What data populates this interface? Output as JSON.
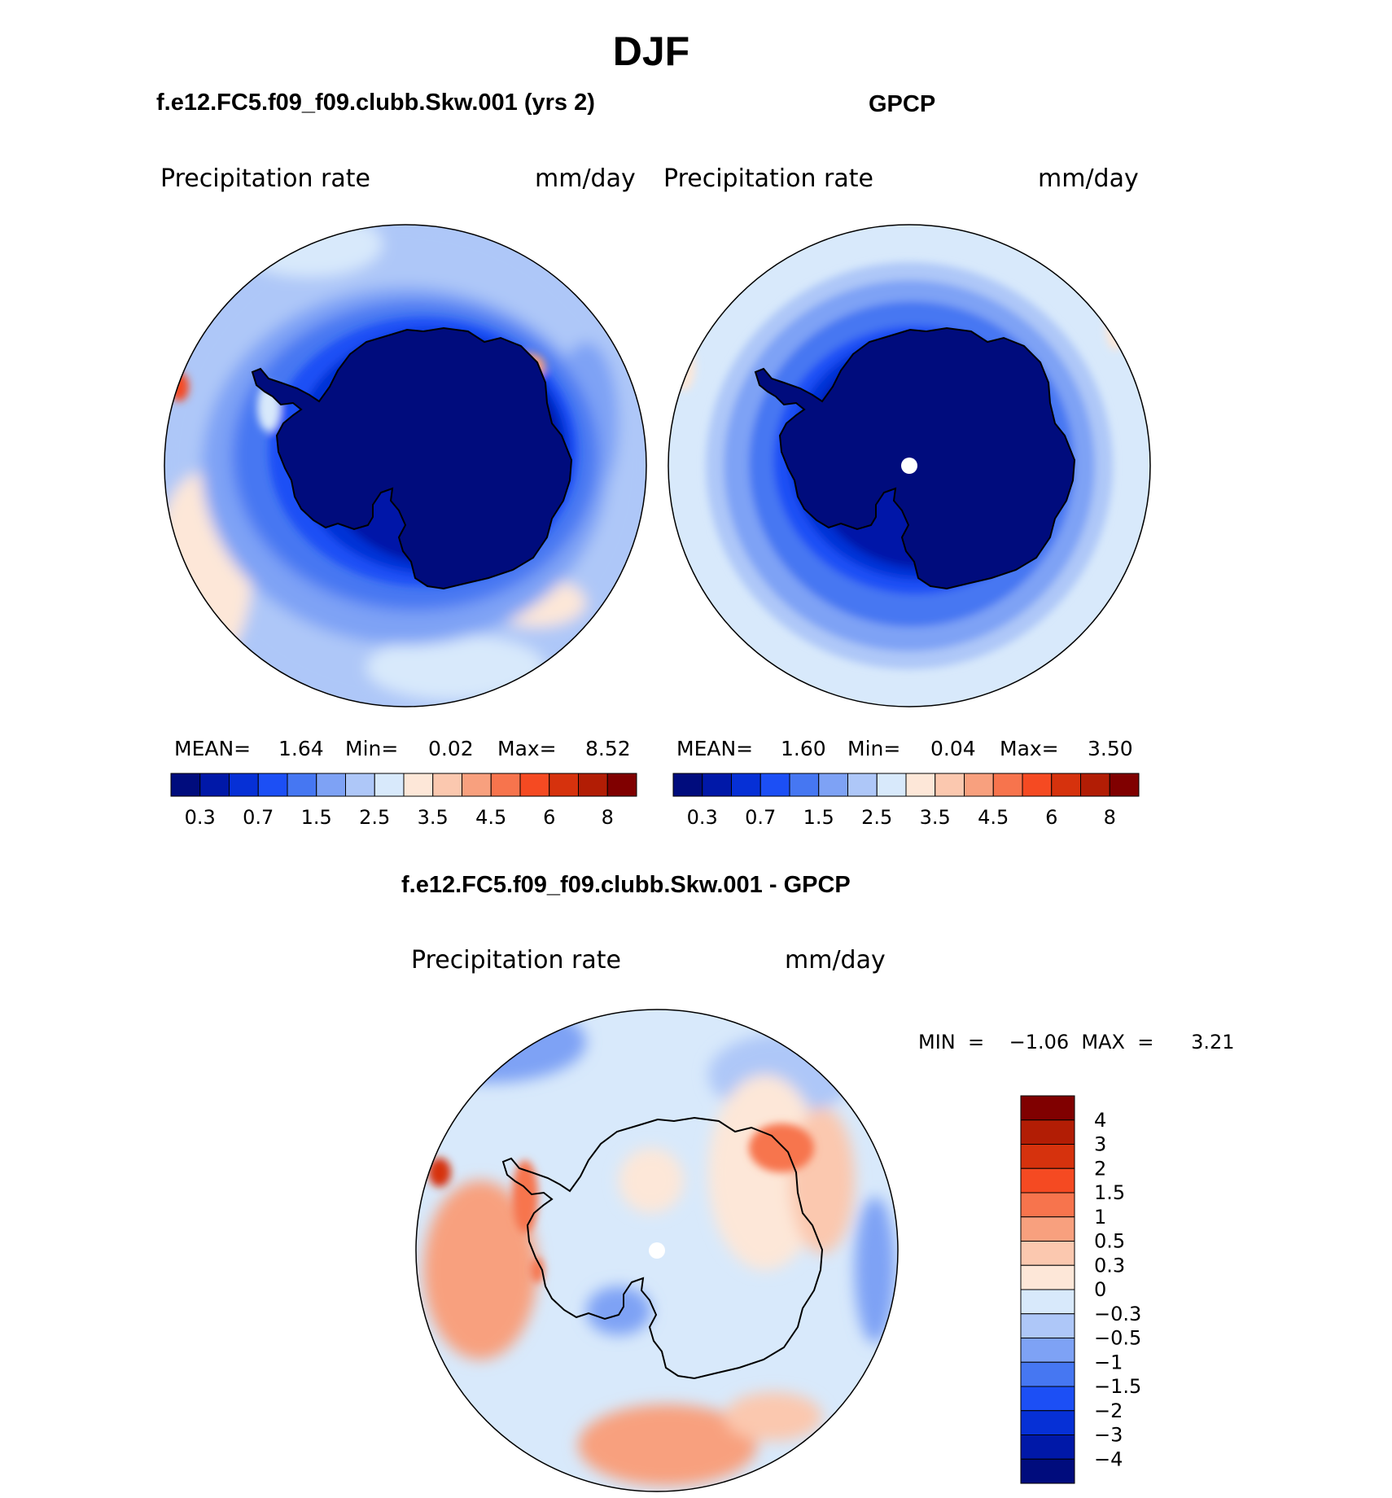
{
  "title": "DJF",
  "panels": [
    {
      "title": "f.e12.FC5.f09_f09.clubb.Skw.001 (yrs 2)",
      "left_label": "Precipitation  rate",
      "right_label": "mm/day",
      "stats": {
        "mean_label": "MEAN=",
        "mean": "1.64",
        "min_label": "Min=",
        "min": "0.02",
        "max_label": "Max=",
        "max": "8.52"
      }
    },
    {
      "title": "GPCP",
      "left_label": "Precipitation  rate",
      "right_label": "mm/day",
      "stats": {
        "mean_label": "MEAN=",
        "mean": "1.60",
        "min_label": "Min=",
        "min": "0.04",
        "max_label": "Max=",
        "max": "3.50"
      }
    }
  ],
  "diff": {
    "title": "f.e12.FC5.f09_f09.clubb.Skw.001 - GPCP",
    "left_label": "Precipitation  rate",
    "right_label": "mm/day",
    "minmax": "MIN  =    −1.06  MAX  =      3.21"
  },
  "colorbar_abs": {
    "colors": [
      "#000c7d",
      "#0018a8",
      "#0630d6",
      "#1c4ff5",
      "#4677f2",
      "#7ea2f5",
      "#aec7f8",
      "#d8e9fb",
      "#fde7d8",
      "#fbc8af",
      "#f8a07e",
      "#f7744d",
      "#f54a22",
      "#d6320d",
      "#b21d05",
      "#800000"
    ],
    "labels": [
      "0.3",
      "0.7",
      "1.5",
      "2.5",
      "3.5",
      "4.5",
      "6",
      "8"
    ]
  },
  "colorbar_diff": {
    "colors": [
      "#000c7d",
      "#0018a8",
      "#0630d6",
      "#1c4ff5",
      "#4677f2",
      "#7ea2f5",
      "#aec7f8",
      "#d8e9fb",
      "#fde7d8",
      "#fbc8af",
      "#f8a07e",
      "#f7744d",
      "#f54a22",
      "#d6320d",
      "#b21d05",
      "#800000"
    ],
    "labels": [
      "4",
      "3",
      "2",
      "1.5",
      "1",
      "0.5",
      "0.3",
      "0",
      "−0.3",
      "−0.5",
      "−1",
      "−1.5",
      "−2",
      "−3",
      "−4"
    ]
  }
}
